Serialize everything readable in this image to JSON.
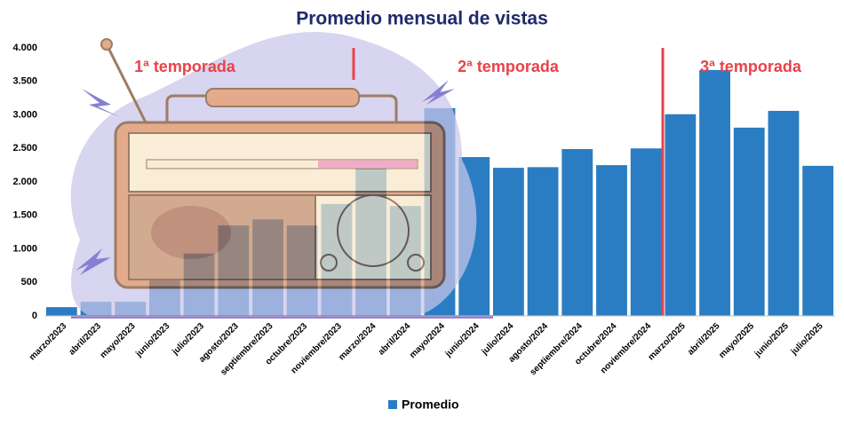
{
  "chart_data": {
    "type": "bar",
    "title": "Promedio mensual de vistas",
    "categories": [
      "marzo/2023",
      "abril/2023",
      "mayo/2023",
      "junio/2023",
      "julio/2023",
      "agosto/2023",
      "septiembre/2023",
      "octubre/2023",
      "noviembre/2023",
      "marzo/2024",
      "abril/2024",
      "mayo/2024",
      "junio/2024",
      "julio/2024",
      "agosto/2024",
      "septiembre/2024",
      "octubre/2024",
      "noviembre/2024",
      "marzo/2025",
      "abril/2025",
      "mayo/2025",
      "junio/2025",
      "julio/2025"
    ],
    "series": [
      {
        "name": "Promedio",
        "color": "#2a7dc2",
        "values": [
          130,
          210,
          210,
          530,
          930,
          1350,
          1440,
          1350,
          1670,
          2200,
          1640,
          3100,
          2370,
          2210,
          2220,
          2490,
          2250,
          2500,
          3010,
          3670,
          2810,
          3060,
          2240
        ]
      }
    ],
    "ylim": [
      0,
      4000
    ],
    "yticks": [
      0,
      500,
      {
        "value": 1000,
        "label": "1.000"
      },
      {
        "value": 1500,
        "label": "1.500"
      },
      {
        "value": 2000,
        "label": "2.000"
      },
      {
        "value": 2500,
        "label": "2.500"
      },
      {
        "value": 3000,
        "label": "3.000"
      },
      {
        "value": 3500,
        "label": "3.500"
      },
      {
        "value": 4000,
        "label": "4.000"
      }
    ],
    "grid": false,
    "legend": "bottom",
    "annotations": [
      "1ª temporada",
      "2ª temporada",
      "3ª temporada"
    ]
  }
}
